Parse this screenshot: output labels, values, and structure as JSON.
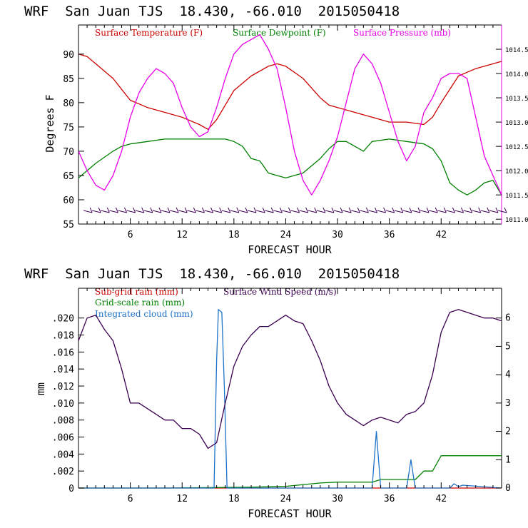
{
  "chart_data": [
    {
      "type": "line",
      "title": "WRF  San Juan TJS  18.430, -66.010  2015050418",
      "xlabel": "FORECAST HOUR",
      "ylabel": "Degrees F",
      "xlim": [
        0,
        49
      ],
      "ylim": [
        55,
        96
      ],
      "y2lim": [
        1010.9,
        1015.0
      ],
      "xticks": [
        6,
        12,
        18,
        24,
        30,
        36,
        42
      ],
      "yticks": [
        55,
        60,
        65,
        70,
        75,
        80,
        85,
        90
      ],
      "y2ticks": [
        "1011.0",
        "1011.5",
        "1012.0",
        "1012.5",
        "1013.0",
        "1013.5",
        "1014.0",
        "1014.5"
      ],
      "y2tick_values": [
        1011.0,
        1011.5,
        1012.0,
        1012.5,
        1013.0,
        1013.5,
        1014.0,
        1014.5
      ],
      "grid": false,
      "legend_position": "top",
      "series": [
        {
          "name": "Surface Temperature (F)",
          "color": "#cc0000",
          "axis": "left",
          "x": [
            0,
            1,
            2,
            3,
            4,
            6,
            8,
            10,
            12,
            14,
            15,
            16,
            17,
            18,
            20,
            22,
            23,
            24,
            26,
            28,
            29,
            30,
            32,
            34,
            36,
            38,
            40,
            41,
            42,
            44,
            46,
            48,
            49
          ],
          "y": [
            90,
            89.5,
            88,
            86.5,
            85,
            80.5,
            79,
            78,
            77,
            75.5,
            74.5,
            76.5,
            79.5,
            82.5,
            85.5,
            87.5,
            88,
            87.5,
            85,
            81,
            79.5,
            79,
            78,
            77,
            76,
            76,
            75.5,
            77,
            80,
            85.5,
            87,
            88,
            88.5
          ]
        },
        {
          "name": "Surface Dewpoint (F)",
          "color": "#008000",
          "axis": "left",
          "x": [
            0,
            2,
            4,
            5,
            6,
            8,
            10,
            12,
            14,
            15,
            16,
            17,
            18,
            19,
            20,
            21,
            22,
            23,
            24,
            26,
            28,
            29,
            30,
            31,
            32,
            33,
            34,
            36,
            38,
            40,
            41,
            42,
            43,
            44,
            45,
            46,
            47,
            48,
            49
          ],
          "y": [
            64.5,
            67.5,
            70,
            71,
            71.5,
            72,
            72.5,
            72.5,
            72.5,
            72.5,
            72.5,
            72.5,
            72,
            71,
            68.5,
            68,
            65.5,
            65,
            64.5,
            65.5,
            68.5,
            70.5,
            72,
            72,
            71,
            70,
            72,
            72.5,
            72,
            71.5,
            70.5,
            68,
            63.5,
            62,
            61,
            62,
            63.5,
            64,
            61
          ]
        },
        {
          "name": "Surface Pressure (mb)",
          "color": "#e800e8",
          "axis": "right",
          "x": [
            0,
            1,
            2,
            3,
            4,
            5,
            6,
            7,
            8,
            9,
            10,
            11,
            12,
            13,
            14,
            15,
            16,
            17,
            18,
            19,
            20,
            21,
            22,
            23,
            24,
            25,
            26,
            27,
            28,
            29,
            30,
            31,
            32,
            33,
            34,
            35,
            36,
            37,
            38,
            39,
            40,
            41,
            42,
            43,
            44,
            45,
            46,
            47,
            48,
            49
          ],
          "y": [
            1012.4,
            1012.0,
            1011.7,
            1011.6,
            1011.9,
            1012.4,
            1013.1,
            1013.6,
            1013.9,
            1014.1,
            1014.0,
            1013.8,
            1013.3,
            1012.9,
            1012.7,
            1012.8,
            1013.3,
            1013.9,
            1014.4,
            1014.6,
            1014.7,
            1014.8,
            1014.5,
            1014.1,
            1013.3,
            1012.4,
            1011.8,
            1011.5,
            1011.8,
            1012.2,
            1012.7,
            1013.4,
            1014.1,
            1014.4,
            1014.2,
            1013.8,
            1013.2,
            1012.6,
            1012.2,
            1012.5,
            1013.2,
            1013.5,
            1013.9,
            1014.0,
            1014.0,
            1013.9,
            1013.1,
            1012.3,
            1011.9,
            1011.5
          ]
        }
      ],
      "wind_barbs": {
        "y_level": 57.5,
        "color": "#3a0050",
        "x_start": 1,
        "x_end": 49,
        "step": 1
      }
    },
    {
      "type": "line",
      "title": "WRF  San Juan TJS  18.430, -66.010  2015050418",
      "xlabel": "FORECAST HOUR",
      "ylabel": "mm",
      "xlim": [
        0,
        49
      ],
      "ylim": [
        0,
        0.0235
      ],
      "y2lim": [
        0,
        7.05
      ],
      "xticks": [
        6,
        12,
        18,
        24,
        30,
        36,
        42
      ],
      "yticks": [
        ".020",
        ".018",
        ".016",
        ".014",
        ".012",
        ".010",
        ".008",
        ".006",
        ".004",
        ".002",
        "0"
      ],
      "ytick_values": [
        0.02,
        0.018,
        0.016,
        0.014,
        0.012,
        0.01,
        0.008,
        0.006,
        0.004,
        0.002,
        0
      ],
      "y2ticks": [
        "6",
        "5",
        "4",
        "3",
        "2",
        "1",
        "0"
      ],
      "y2tick_values": [
        6,
        5,
        4,
        3,
        2,
        1,
        0
      ],
      "grid": false,
      "legend_position": "top-left",
      "series": [
        {
          "name": "Sub-grid rain (mm)",
          "color": "#cc0000",
          "axis": "left",
          "x": [
            0,
            49
          ],
          "y": [
            0,
            0
          ]
        },
        {
          "name": "Grid-scale rain (mm)",
          "color": "#008000",
          "axis": "left",
          "x": [
            0,
            10,
            20,
            24,
            28,
            30,
            34,
            35,
            39,
            40,
            41,
            42,
            43,
            49
          ],
          "y": [
            0,
            0,
            0.0001,
            0.0002,
            0.0006,
            0.0007,
            0.0007,
            0.001,
            0.001,
            0.002,
            0.002,
            0.0038,
            0.0038,
            0.0038
          ]
        },
        {
          "name": "Integrated cloud (mm)",
          "color": "#1e73c8",
          "axis": "right",
          "x": [
            0,
            15.7,
            16,
            16.2,
            16.6,
            16.9,
            17.2,
            34,
            34.3,
            34.5,
            34.7,
            35,
            38,
            38.3,
            38.5,
            38.7,
            39,
            43,
            43.5,
            44,
            44.5,
            49
          ],
          "y": [
            0,
            0,
            4.5,
            6.3,
            6.2,
            3.5,
            0,
            0,
            1.2,
            2.0,
            1.2,
            0,
            0,
            0.6,
            1.0,
            0.6,
            0,
            0,
            0.15,
            0.05,
            0.1,
            0
          ]
        },
        {
          "name": "Surface Wind Speed (m/s)",
          "color": "#3a0050",
          "axis": "right",
          "x": [
            0,
            1,
            2,
            3,
            4,
            5,
            6,
            7,
            8,
            9,
            10,
            11,
            12,
            13,
            14,
            15,
            16,
            17,
            18,
            19,
            20,
            21,
            22,
            23,
            24,
            25,
            26,
            27,
            28,
            29,
            30,
            31,
            32,
            33,
            34,
            35,
            36,
            37,
            38,
            39,
            40,
            41,
            42,
            43,
            44,
            45,
            46,
            47,
            48,
            49
          ],
          "y": [
            5.2,
            6.0,
            6.1,
            5.6,
            5.2,
            4.2,
            3.0,
            3.0,
            2.8,
            2.6,
            2.4,
            2.4,
            2.1,
            2.1,
            1.9,
            1.4,
            1.6,
            3.0,
            4.3,
            5.0,
            5.4,
            5.7,
            5.7,
            5.9,
            6.1,
            5.9,
            5.8,
            5.2,
            4.5,
            3.6,
            3.0,
            2.6,
            2.4,
            2.2,
            2.4,
            2.5,
            2.4,
            2.3,
            2.6,
            2.7,
            3.0,
            4.0,
            5.5,
            6.2,
            6.3,
            6.2,
            6.1,
            6.0,
            6.0,
            5.9
          ]
        }
      ]
    }
  ]
}
